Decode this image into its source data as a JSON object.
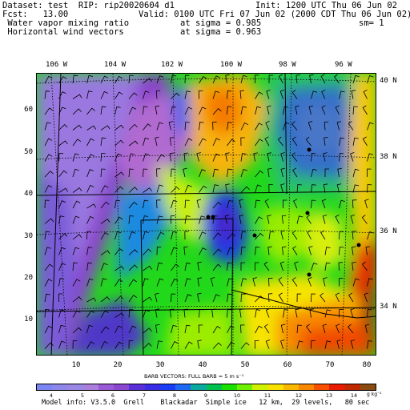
{
  "header": {
    "line1_left": "Dataset: test  RIP: rip20020604 d1",
    "line1_right": "Init: 1200 UTC Thu 06 Jun 02",
    "line2_left": "Fcst:   13.00",
    "line2_right": "Valid: 0100 UTC Fri 07 Jun 02 (2000 CDT Thu 06 Jun 02)",
    "line3_left": " Water vapor mixing ratio",
    "line3_mid": "at sigma = 0.985",
    "line3_right": "sm= 1",
    "line4_left": " Horizontal wind vectors",
    "line4_mid": "at sigma = 0.963"
  },
  "top_longitudes": [
    "106 W",
    "104 W",
    "102 W",
    "100 W",
    "98 W",
    "96 W"
  ],
  "right_latitudes": [
    "40 N",
    "38 N",
    "36 N",
    "34 N"
  ],
  "y_ticks": [
    "60",
    "50",
    "40",
    "30",
    "20",
    "10"
  ],
  "x_ticks": [
    "10",
    "20",
    "30",
    "40",
    "50",
    "60",
    "70",
    "80"
  ],
  "barbs_label": "BARB VECTORS:  FULL BARB = 5 m s⁻¹",
  "colorbar": {
    "colors": [
      "#7b86f2",
      "#8d87ec",
      "#9a86e4",
      "#a97fdb",
      "#9a5ad8",
      "#8a48d0",
      "#5a2fd8",
      "#3a2be4",
      "#1b3cf5",
      "#1f69f2",
      "#0aa9a0",
      "#00c050",
      "#1ae000",
      "#6ef000",
      "#cff000",
      "#f8e000",
      "#f8b800",
      "#f88800",
      "#f85000",
      "#e81c00",
      "#c02800",
      "#8a4a10"
    ],
    "labels": [
      "4",
      "5",
      "6",
      "7",
      "8",
      "9",
      "10",
      "11",
      "12",
      "13",
      "14"
    ],
    "units": "g kg⁻¹"
  },
  "model_info": "Model info: V3.5.0  Grell    Blackadar  Simple ice   12 km,  29 levels,   80 sec"
}
